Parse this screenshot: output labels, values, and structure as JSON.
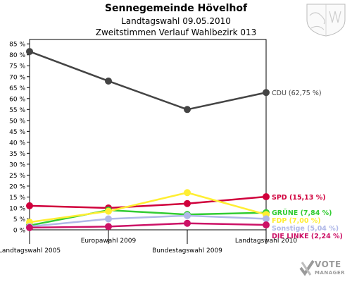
{
  "header": {
    "title": "Sennegemeinde Hövelhof",
    "subtitle1": "Landtagswahl 09.05.2010",
    "subtitle2": "Zweitstimmen Verlauf Wahlbezirk 013"
  },
  "logo": {
    "text": "VOTE",
    "sub": "MANAGER"
  },
  "chart_data": {
    "type": "line",
    "categories": [
      "Landtagswahl 2005",
      "Europawahl 2009",
      "Bundestagswahl 2009",
      "Landtagswahl 2010"
    ],
    "yticks": [
      "0 %",
      "5 %",
      "10 %",
      "15 %",
      "20 %",
      "25 %",
      "30 %",
      "35 %",
      "40 %",
      "45 %",
      "50 %",
      "55 %",
      "60 %",
      "65 %",
      "70 %",
      "75 %",
      "80 %",
      "85 %"
    ],
    "ylim": [
      0,
      87
    ],
    "grid": false,
    "series": [
      {
        "name": "CDU",
        "label": "CDU (62,75 %)",
        "color": "#444444",
        "values": [
          81.5,
          68.0,
          55.0,
          62.75
        ]
      },
      {
        "name": "SPD",
        "label": "SPD (15,13 %)",
        "color": "#d0003c",
        "values": [
          11.0,
          10.0,
          12.0,
          15.13
        ]
      },
      {
        "name": "GRÜNE",
        "label": "GRÜNE (7,84 %)",
        "color": "#33cc33",
        "values": [
          2.0,
          9.0,
          7.0,
          7.84
        ]
      },
      {
        "name": "FDP",
        "label": "FDP (7,00 %)",
        "color": "#ffee33",
        "values": [
          3.5,
          8.5,
          17.0,
          7.0
        ]
      },
      {
        "name": "Sonstige",
        "label": "Sonstige (5,04 %)",
        "color": "#b0b8e8",
        "values": [
          1.5,
          5.0,
          6.5,
          5.04
        ]
      },
      {
        "name": "DIE LINKE",
        "label": "DIE LINKE (2,24 %)",
        "color": "#cc1166",
        "values": [
          1.0,
          1.5,
          3.0,
          2.24
        ]
      }
    ]
  }
}
